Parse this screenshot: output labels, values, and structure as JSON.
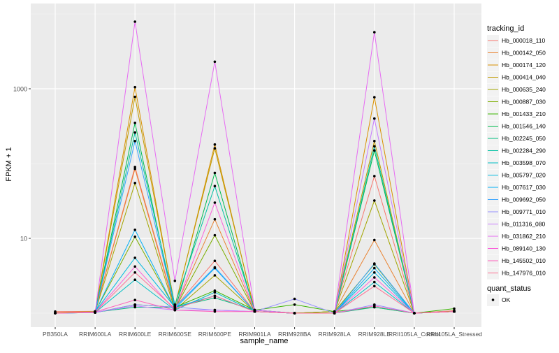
{
  "chart_data": {
    "type": "line",
    "xlabel": "sample_name",
    "ylabel": "FPKM + 1",
    "y_scale": "log10",
    "ylim": [
      1,
      10000
    ],
    "y_ticks": [
      10,
      1000
    ],
    "background": "#EBEBEB",
    "grid": true,
    "categories": [
      "PB350LA",
      "RRIM600LA",
      "RRIM600LE",
      "RRIM600SE",
      "RRIM600PE",
      "RRIM901LA",
      "RRIM928BA",
      "RRIM928LA",
      "RRIM928LE",
      "RRII105LA_Control",
      "RRII105LA_Stressed"
    ],
    "legend": {
      "position": "right",
      "tracking_title": "tracking_id",
      "quant_title": "quant_status",
      "quant_label": "OK"
    },
    "series": [
      {
        "name": "Hb_000018_110",
        "color": "#F8766D",
        "values": [
          1.05,
          1.06,
          90,
          1.2,
          5.0,
          1.05,
          1.0,
          1.05,
          68,
          1.0,
          1.08
        ]
      },
      {
        "name": "Hb_000142_050",
        "color": "#EA8331",
        "values": [
          1.0,
          1.05,
          85,
          1.15,
          18,
          1.05,
          1.0,
          1.05,
          9.5,
          1.0,
          1.06
        ]
      },
      {
        "name": "Hb_000174_120",
        "color": "#D89000",
        "values": [
          1.0,
          1.04,
          1050,
          1.2,
          180,
          1.05,
          1.0,
          1.0,
          770,
          1.0,
          1.05
        ]
      },
      {
        "name": "Hb_000414_040",
        "color": "#C09B00",
        "values": [
          1.02,
          1.05,
          780,
          1.25,
          160,
          1.1,
          1.0,
          1.05,
          200,
          1.0,
          1.05
        ]
      },
      {
        "name": "Hb_000635_240",
        "color": "#A3A500",
        "values": [
          1.0,
          1.03,
          55,
          1.1,
          3.2,
          1.05,
          1.0,
          1.05,
          32,
          1.0,
          1.05
        ]
      },
      {
        "name": "Hb_000887_030",
        "color": "#7CAE00",
        "values": [
          1.0,
          1.04,
          10.5,
          1.15,
          11,
          1.05,
          1.0,
          1.05,
          4.5,
          1.0,
          1.06
        ]
      },
      {
        "name": "Hb_001433_210",
        "color": "#39B600",
        "values": [
          1.0,
          1.02,
          1.3,
          1.2,
          2.0,
          1.1,
          1.3,
          1.05,
          1.2,
          1.0,
          1.15
        ]
      },
      {
        "name": "Hb_001546_140",
        "color": "#00BB4E",
        "values": [
          1.0,
          1.03,
          350,
          1.1,
          75,
          1.05,
          1.0,
          1.0,
          150,
          1.0,
          1.05
        ]
      },
      {
        "name": "Hb_002245_050",
        "color": "#00BF7D",
        "values": [
          1.0,
          1.03,
          1.2,
          1.2,
          1.6,
          1.1,
          1.0,
          1.0,
          1.2,
          1.0,
          1.05
        ]
      },
      {
        "name": "Hb_002284_290",
        "color": "#00C1A3",
        "values": [
          1.0,
          1.03,
          260,
          1.3,
          50,
          1.1,
          1.0,
          1.0,
          170,
          1.0,
          1.05
        ]
      },
      {
        "name": "Hb_003598_070",
        "color": "#00BFC4",
        "values": [
          1.0,
          1.02,
          2.8,
          1.1,
          1.9,
          1.05,
          1.0,
          1.0,
          2.6,
          1.0,
          1.05
        ]
      },
      {
        "name": "Hb_005797_020",
        "color": "#00BAE0",
        "values": [
          1.0,
          1.04,
          5.5,
          1.2,
          1.7,
          1.05,
          1.0,
          1.0,
          3.5,
          1.0,
          1.05
        ]
      },
      {
        "name": "Hb_007617_030",
        "color": "#00B0F6",
        "values": [
          1.0,
          1.03,
          13,
          1.15,
          4.0,
          1.05,
          1.0,
          1.0,
          4.0,
          1.0,
          1.05
        ]
      },
      {
        "name": "Hb_009692_050",
        "color": "#35A2FF",
        "values": [
          1.0,
          1.02,
          200,
          1.2,
          4.1,
          1.05,
          1.0,
          1.0,
          4.6,
          1.0,
          1.05
        ]
      },
      {
        "name": "Hb_009771_010",
        "color": "#9590FF",
        "values": [
          1.0,
          1.02,
          1.3,
          1.2,
          1.1,
          1.05,
          1.55,
          1.0,
          1.3,
          1.0,
          1.05
        ]
      },
      {
        "name": "Hb_011316_080",
        "color": "#C77CFF",
        "values": [
          1.0,
          1.03,
          1.25,
          1.1,
          1.1,
          1.05,
          1.0,
          1.0,
          400,
          1.0,
          1.05
        ]
      },
      {
        "name": "Hb_031862_210",
        "color": "#E76BF3",
        "values": [
          1.0,
          1.02,
          7900,
          2.7,
          2300,
          1.1,
          1.0,
          1.0,
          5700,
          1.0,
          1.05
        ]
      },
      {
        "name": "Hb_089140_130",
        "color": "#FA62DB",
        "values": [
          1.0,
          1.03,
          4.2,
          1.1,
          30,
          1.05,
          1.0,
          1.0,
          3.0,
          1.0,
          1.05
        ]
      },
      {
        "name": "Hb_145502_010",
        "color": "#FF62BC",
        "values": [
          1.0,
          1.04,
          1.5,
          1.1,
          1.05,
          1.05,
          1.0,
          1.0,
          1.25,
          1.0,
          1.05
        ]
      },
      {
        "name": "Hb_147976_010",
        "color": "#FF6C91",
        "values": [
          1.0,
          1.03,
          3.5,
          1.15,
          1.7,
          1.05,
          1.0,
          1.0,
          2.3,
          1.0,
          1.05
        ]
      }
    ]
  }
}
